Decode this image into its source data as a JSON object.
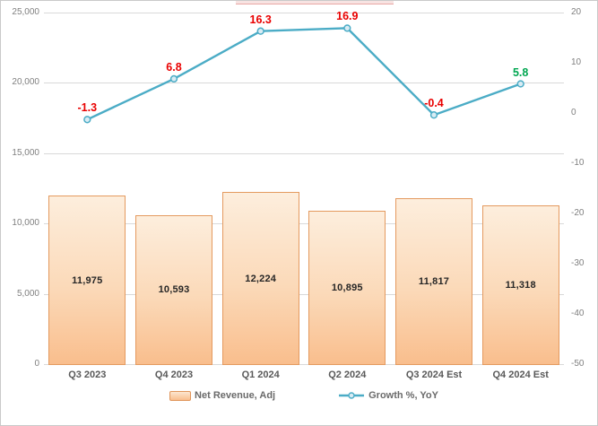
{
  "chart_data": {
    "type": "combo",
    "title": "",
    "categories": [
      "Q3 2023",
      "Q4 2023",
      "Q1 2024",
      "Q2 2024",
      "Q3 2024 Est",
      "Q4 2024 Est"
    ],
    "series": [
      {
        "name": "Net Revenue, Adj",
        "type": "bar",
        "axis": "left",
        "values": [
          11975,
          10593,
          12224,
          10895,
          11817,
          11318
        ],
        "data_labels": [
          "11,975",
          "10,593",
          "12,224",
          "10,895",
          "11,817",
          "11,318"
        ]
      },
      {
        "name": "Growth %, YoY",
        "type": "line",
        "axis": "right",
        "values": [
          -1.3,
          6.8,
          16.3,
          16.9,
          -0.4,
          5.8
        ],
        "data_labels": [
          "-1.3",
          "6.8",
          "16.3",
          "16.9",
          "-0.4",
          "5.8"
        ],
        "label_colors": [
          "#e90000",
          "#e90000",
          "#e90000",
          "#e90000",
          "#e90000",
          "#00a650"
        ]
      }
    ],
    "left_axis": {
      "min": 0,
      "max": 25000,
      "tick_values": [
        25000,
        20000,
        15000,
        10000,
        5000,
        0
      ],
      "tick_labels": [
        "25,000",
        "20,000",
        "15,000",
        "10,000",
        "5,000",
        "0"
      ]
    },
    "right_axis": {
      "min": -50,
      "max": 20,
      "tick_values": [
        20,
        10,
        0,
        -10,
        -20,
        -30,
        -40,
        -50
      ],
      "tick_labels": [
        "20",
        "10",
        "0",
        "-10",
        "-20",
        "-30",
        "-40",
        "-50"
      ]
    },
    "grid": "horizontal",
    "legend": {
      "position": "bottom",
      "revenue_label": "Net Revenue, Adj",
      "growth_label": "Growth %, YoY"
    }
  },
  "colors": {
    "bar_fill_top": "#fdeedd",
    "bar_fill_bottom": "#f9be8d",
    "bar_border": "#e49a5f",
    "line": "#4bacc6",
    "marker_fill": "#d9ecf4",
    "marker_border": "#4bacc6",
    "gridline": "#d9d9d9",
    "axis_text": "#7f7f7f",
    "category_text": "#595959",
    "bar_label_text": "#262626",
    "growth_label_red": "#e90000",
    "growth_label_green": "#00a650"
  }
}
